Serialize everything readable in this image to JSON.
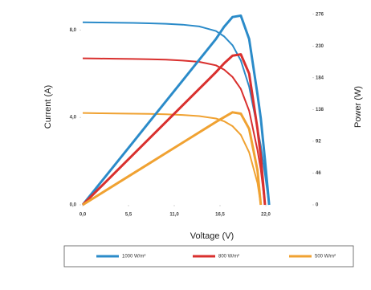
{
  "chart_data": {
    "type": "line",
    "x_label": "Voltage (V)",
    "y_label": "Current (A)",
    "y2_label": "Power (W)",
    "x": [
      0,
      2,
      4,
      6,
      8,
      10,
      12,
      14,
      16,
      17,
      18,
      19,
      20,
      21,
      21.4,
      21.9,
      22.4
    ],
    "xlim": [
      0,
      27.5
    ],
    "xticks": [
      {
        "value": 0,
        "label": "0,0"
      },
      {
        "value": 5.5,
        "label": "5,5"
      },
      {
        "value": 11,
        "label": "11,0"
      },
      {
        "value": 16.5,
        "label": "16,5"
      },
      {
        "value": 22,
        "label": "22,0"
      }
    ],
    "ylim": [
      0,
      9
    ],
    "yticks": [
      {
        "value": 0,
        "label": "0,0"
      },
      {
        "value": 4,
        "label": "4,0"
      },
      {
        "value": 8,
        "label": "8,0"
      }
    ],
    "y2lim": [
      0,
      285
    ],
    "y2ticks": [
      0,
      46,
      92,
      138,
      184,
      230,
      276
    ],
    "series": [
      {
        "name": "1000 W/m²",
        "color": "#2b8bc9",
        "values": [
          8.35,
          8.34,
          8.33,
          8.32,
          8.3,
          8.28,
          8.24,
          8.16,
          7.95,
          7.7,
          7.3,
          6.6,
          5.4,
          3.5,
          2.7,
          1.4,
          0
        ]
      },
      {
        "name": "800 W/m²",
        "color": "#d9302e",
        "values": [
          6.7,
          6.69,
          6.68,
          6.67,
          6.66,
          6.64,
          6.6,
          6.54,
          6.38,
          6.18,
          5.85,
          5.3,
          4.3,
          2.5,
          1.6,
          0,
          null
        ]
      },
      {
        "name": "500 W/m²",
        "color": "#f0a232",
        "values": [
          4.2,
          4.19,
          4.18,
          4.17,
          4.16,
          4.14,
          4.11,
          4.06,
          3.95,
          3.82,
          3.6,
          3.2,
          2.4,
          1.0,
          0,
          null,
          null
        ]
      },
      {
        "color": "#2b8bc9",
        "axis": "y2",
        "values": [
          0,
          30,
          60,
          90,
          120,
          150,
          180,
          210,
          240,
          258,
          272,
          274,
          240,
          160,
          125,
          65,
          0
        ]
      },
      {
        "color": "#d9302e",
        "axis": "y2",
        "values": [
          0,
          24,
          48,
          72,
          96,
          120,
          144,
          168,
          192,
          205,
          216,
          218,
          190,
          110,
          70,
          0,
          null
        ]
      },
      {
        "color": "#f0a232",
        "axis": "y2",
        "values": [
          0,
          15,
          30,
          45,
          60,
          75,
          90,
          105,
          120,
          127,
          134,
          132,
          110,
          50,
          0,
          null,
          null
        ]
      }
    ]
  }
}
